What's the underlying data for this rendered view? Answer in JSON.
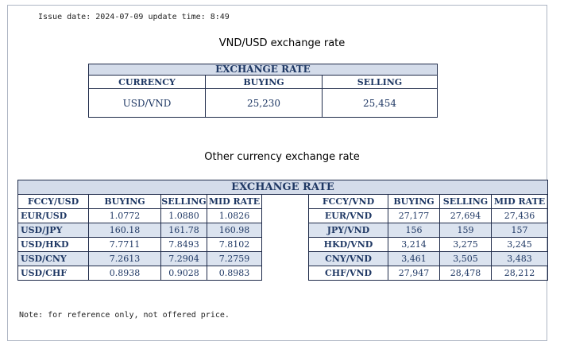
{
  "issue_line": "Issue date: 2024-07-09 update time: 8:49",
  "vnd_usd": {
    "title": "VND/USD exchange rate",
    "table_title": "EXCHANGE RATE",
    "headers": [
      "CURRENCY",
      "BUYING",
      "SELLING"
    ],
    "row": {
      "currency": "USD/VND",
      "buying": "25,230",
      "selling": "25,454"
    }
  },
  "other": {
    "title": "Other currency exchange rate",
    "table_title": "EXCHANGE  RATE",
    "left_headers": [
      "FCCY/USD",
      "BUYING",
      "SELLING",
      "MID RATE"
    ],
    "right_headers": [
      "FCCY/VND",
      "BUYING",
      "SELLING",
      "MID RATE"
    ],
    "rows": [
      {
        "lpair": "EUR/USD",
        "lbuy": "1.0772",
        "lsell": "1.0880",
        "lmid": "1.0826",
        "rpair": "EUR/VND",
        "rbuy": "27,177",
        "rsell": "27,694",
        "rmid": "27,436"
      },
      {
        "lpair": "USD/JPY",
        "lbuy": "160.18",
        "lsell": "161.78",
        "lmid": "160.98",
        "rpair": "JPY/VND",
        "rbuy": "156",
        "rsell": "159",
        "rmid": "157"
      },
      {
        "lpair": "USD/HKD",
        "lbuy": "7.7711",
        "lsell": "7.8493",
        "lmid": "7.8102",
        "rpair": "HKD/VND",
        "rbuy": "3,214",
        "rsell": "3,275",
        "rmid": "3,245"
      },
      {
        "lpair": "USD/CNY",
        "lbuy": "7.2613",
        "lsell": "7.2904",
        "lmid": "7.2759",
        "rpair": "CNY/VND",
        "rbuy": "3,461",
        "rsell": "3,505",
        "rmid": "3,483"
      },
      {
        "lpair": "USD/CHF",
        "lbuy": "0.8938",
        "lsell": "0.9028",
        "lmid": "0.8983",
        "rpair": "CHF/VND",
        "rbuy": "27,947",
        "rsell": "28,478",
        "rmid": "28,212"
      }
    ]
  },
  "note": "Note: for reference only, not offered price."
}
